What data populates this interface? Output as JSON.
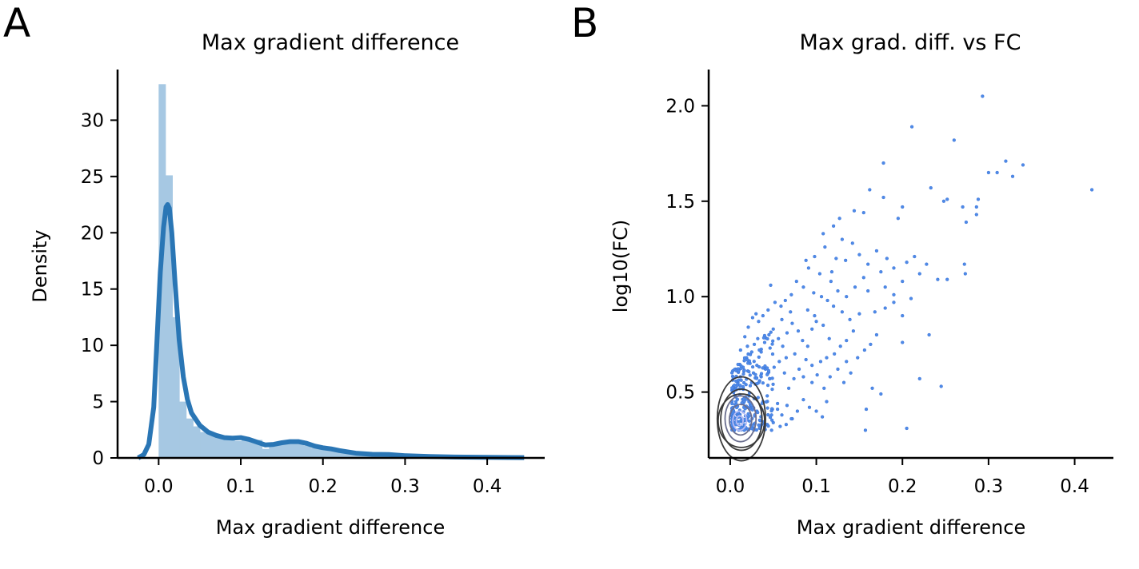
{
  "panels": {
    "a": {
      "letter": "A"
    },
    "b": {
      "letter": "B"
    }
  },
  "chart_data": [
    {
      "type": "bar",
      "title": "Max gradient difference",
      "xlabel": "Max gradient difference",
      "ylabel": "Density",
      "xlim": [
        -0.05,
        0.47
      ],
      "ylim": [
        0,
        34.5
      ],
      "xticks": [
        0.0,
        0.1,
        0.2,
        0.3,
        0.4
      ],
      "xtick_labels": [
        "0.0",
        "0.1",
        "0.2",
        "0.3",
        "0.4"
      ],
      "yticks": [
        0,
        5,
        10,
        15,
        20,
        25,
        30
      ],
      "ytick_labels": [
        "0",
        "5",
        "10",
        "15",
        "20",
        "25",
        "30"
      ],
      "bin_width": 0.0084,
      "histogram": [
        {
          "x": 0.0042,
          "y": 33.2
        },
        {
          "x": 0.0126,
          "y": 25.1
        },
        {
          "x": 0.021,
          "y": 12.5
        },
        {
          "x": 0.0294,
          "y": 5.0
        },
        {
          "x": 0.0378,
          "y": 3.5
        },
        {
          "x": 0.0462,
          "y": 2.8
        },
        {
          "x": 0.0546,
          "y": 2.3
        },
        {
          "x": 0.063,
          "y": 2.1
        },
        {
          "x": 0.0714,
          "y": 1.9
        },
        {
          "x": 0.0798,
          "y": 1.7
        },
        {
          "x": 0.0882,
          "y": 1.6
        },
        {
          "x": 0.0966,
          "y": 1.5
        },
        {
          "x": 0.105,
          "y": 1.7
        },
        {
          "x": 0.1134,
          "y": 1.5
        },
        {
          "x": 0.1218,
          "y": 1.6
        },
        {
          "x": 0.1302,
          "y": 0.8
        },
        {
          "x": 0.1386,
          "y": 1.2
        },
        {
          "x": 0.147,
          "y": 1.4
        },
        {
          "x": 0.1554,
          "y": 1.5
        },
        {
          "x": 0.1638,
          "y": 1.3
        },
        {
          "x": 0.1722,
          "y": 1.3
        },
        {
          "x": 0.1806,
          "y": 1.1
        },
        {
          "x": 0.189,
          "y": 0.9
        },
        {
          "x": 0.1974,
          "y": 0.8
        },
        {
          "x": 0.2058,
          "y": 0.7
        },
        {
          "x": 0.2142,
          "y": 0.6
        },
        {
          "x": 0.2226,
          "y": 0.5
        },
        {
          "x": 0.231,
          "y": 0.5
        },
        {
          "x": 0.2394,
          "y": 0.4
        },
        {
          "x": 0.2478,
          "y": 0.4
        },
        {
          "x": 0.2562,
          "y": 0.35
        },
        {
          "x": 0.2646,
          "y": 0.3
        },
        {
          "x": 0.273,
          "y": 0.3
        },
        {
          "x": 0.2814,
          "y": 0.25
        },
        {
          "x": 0.2898,
          "y": 0.2
        },
        {
          "x": 0.2982,
          "y": 0.2
        },
        {
          "x": 0.3066,
          "y": 0.15
        },
        {
          "x": 0.315,
          "y": 0.12
        },
        {
          "x": 0.3234,
          "y": 0.1
        },
        {
          "x": 0.3318,
          "y": 0.1
        },
        {
          "x": 0.3402,
          "y": 0.08
        },
        {
          "x": 0.42,
          "y": 0.1
        }
      ],
      "kde": [
        [
          -0.025,
          0.0
        ],
        [
          -0.018,
          0.3
        ],
        [
          -0.012,
          1.2
        ],
        [
          -0.006,
          4.5
        ],
        [
          -0.002,
          10.5
        ],
        [
          0.002,
          16.5
        ],
        [
          0.006,
          20.5
        ],
        [
          0.009,
          22.3
        ],
        [
          0.011,
          22.5
        ],
        [
          0.013,
          22.2
        ],
        [
          0.016,
          20.0
        ],
        [
          0.02,
          15.5
        ],
        [
          0.025,
          10.5
        ],
        [
          0.03,
          7.2
        ],
        [
          0.035,
          5.2
        ],
        [
          0.04,
          4.0
        ],
        [
          0.05,
          2.9
        ],
        [
          0.06,
          2.3
        ],
        [
          0.07,
          2.0
        ],
        [
          0.08,
          1.8
        ],
        [
          0.09,
          1.75
        ],
        [
          0.1,
          1.8
        ],
        [
          0.11,
          1.65
        ],
        [
          0.12,
          1.4
        ],
        [
          0.13,
          1.15
        ],
        [
          0.14,
          1.2
        ],
        [
          0.15,
          1.35
        ],
        [
          0.16,
          1.45
        ],
        [
          0.17,
          1.45
        ],
        [
          0.18,
          1.3
        ],
        [
          0.19,
          1.05
        ],
        [
          0.2,
          0.9
        ],
        [
          0.21,
          0.8
        ],
        [
          0.22,
          0.65
        ],
        [
          0.24,
          0.42
        ],
        [
          0.26,
          0.32
        ],
        [
          0.28,
          0.3
        ],
        [
          0.3,
          0.2
        ],
        [
          0.33,
          0.12
        ],
        [
          0.36,
          0.08
        ],
        [
          0.4,
          0.05
        ],
        [
          0.445,
          0.03
        ]
      ],
      "colors": {
        "hist": "#a6c8e3",
        "kde": "#2a76b5"
      }
    },
    {
      "type": "scatter",
      "title": "Max grad. diff. vs FC",
      "xlabel": "Max gradient difference",
      "ylabel": "log10(FC)",
      "xlim": [
        -0.025,
        0.445
      ],
      "ylim": [
        0.155,
        2.19
      ],
      "xticks": [
        0.0,
        0.1,
        0.2,
        0.3,
        0.4
      ],
      "xtick_labels": [
        "0.0",
        "0.1",
        "0.2",
        "0.3",
        "0.4"
      ],
      "yticks": [
        0.5,
        1.0,
        1.5,
        2.0
      ],
      "ytick_labels": [
        "0.5",
        "1.0",
        "1.5",
        "2.0"
      ],
      "points": [
        [
          0.293,
          2.05
        ],
        [
          0.211,
          1.89
        ],
        [
          0.26,
          1.82
        ],
        [
          0.178,
          1.7
        ],
        [
          0.32,
          1.71
        ],
        [
          0.3,
          1.65
        ],
        [
          0.31,
          1.65
        ],
        [
          0.34,
          1.69
        ],
        [
          0.328,
          1.63
        ],
        [
          0.42,
          1.56
        ],
        [
          0.233,
          1.57
        ],
        [
          0.252,
          1.51
        ],
        [
          0.248,
          1.5
        ],
        [
          0.27,
          1.47
        ],
        [
          0.288,
          1.51
        ],
        [
          0.286,
          1.47
        ],
        [
          0.274,
          1.39
        ],
        [
          0.286,
          1.43
        ],
        [
          0.2,
          1.47
        ],
        [
          0.195,
          1.41
        ],
        [
          0.178,
          1.52
        ],
        [
          0.162,
          1.56
        ],
        [
          0.155,
          1.44
        ],
        [
          0.144,
          1.45
        ],
        [
          0.127,
          1.41
        ],
        [
          0.12,
          1.37
        ],
        [
          0.13,
          1.3
        ],
        [
          0.108,
          1.33
        ],
        [
          0.11,
          1.26
        ],
        [
          0.098,
          1.21
        ],
        [
          0.088,
          1.19
        ],
        [
          0.091,
          1.15
        ],
        [
          0.104,
          1.12
        ],
        [
          0.117,
          1.08
        ],
        [
          0.123,
          1.2
        ],
        [
          0.134,
          1.19
        ],
        [
          0.142,
          1.28
        ],
        [
          0.15,
          1.22
        ],
        [
          0.16,
          1.17
        ],
        [
          0.17,
          1.24
        ],
        [
          0.175,
          1.13
        ],
        [
          0.182,
          1.2
        ],
        [
          0.19,
          1.15
        ],
        [
          0.205,
          1.18
        ],
        [
          0.214,
          1.21
        ],
        [
          0.22,
          1.12
        ],
        [
          0.228,
          1.17
        ],
        [
          0.241,
          1.09
        ],
        [
          0.252,
          1.09
        ],
        [
          0.273,
          1.12
        ],
        [
          0.272,
          1.17
        ],
        [
          0.231,
          0.8
        ],
        [
          0.2,
          0.9
        ],
        [
          0.19,
          0.97
        ],
        [
          0.18,
          0.94
        ],
        [
          0.168,
          0.92
        ],
        [
          0.15,
          0.91
        ],
        [
          0.139,
          0.88
        ],
        [
          0.13,
          0.92
        ],
        [
          0.12,
          0.95
        ],
        [
          0.113,
          0.98
        ],
        [
          0.106,
          1.0
        ],
        [
          0.097,
          1.02
        ],
        [
          0.085,
          1.05
        ],
        [
          0.077,
          1.08
        ],
        [
          0.071,
          1.01
        ],
        [
          0.064,
          0.98
        ],
        [
          0.059,
          0.95
        ],
        [
          0.052,
          0.97
        ],
        [
          0.047,
          1.06
        ],
        [
          0.044,
          0.93
        ],
        [
          0.038,
          0.9
        ],
        [
          0.033,
          0.87
        ],
        [
          0.03,
          0.91
        ],
        [
          0.026,
          0.89
        ],
        [
          0.021,
          0.84
        ],
        [
          0.017,
          0.79
        ],
        [
          0.02,
          0.74
        ],
        [
          0.025,
          0.71
        ],
        [
          0.028,
          0.75
        ],
        [
          0.032,
          0.78
        ],
        [
          0.036,
          0.71
        ],
        [
          0.04,
          0.76
        ],
        [
          0.045,
          0.8
        ],
        [
          0.05,
          0.83
        ],
        [
          0.056,
          0.78
        ],
        [
          0.061,
          0.74
        ],
        [
          0.066,
          0.81
        ],
        [
          0.072,
          0.86
        ],
        [
          0.079,
          0.82
        ],
        [
          0.084,
          0.77
        ],
        [
          0.09,
          0.74
        ],
        [
          0.095,
          0.83
        ],
        [
          0.1,
          0.87
        ],
        [
          0.108,
          0.85
        ],
        [
          0.115,
          0.78
        ],
        [
          0.121,
          0.7
        ],
        [
          0.128,
          0.74
        ],
        [
          0.135,
          0.77
        ],
        [
          0.143,
          0.82
        ],
        [
          0.148,
          0.68
        ],
        [
          0.156,
          0.72
        ],
        [
          0.163,
          0.75
        ],
        [
          0.17,
          0.8
        ],
        [
          0.2,
          0.76
        ],
        [
          0.14,
          0.6
        ],
        [
          0.132,
          0.55
        ],
        [
          0.125,
          0.62
        ],
        [
          0.116,
          0.58
        ],
        [
          0.109,
          0.52
        ],
        [
          0.101,
          0.59
        ],
        [
          0.095,
          0.64
        ],
        [
          0.088,
          0.67
        ],
        [
          0.08,
          0.62
        ],
        [
          0.074,
          0.57
        ],
        [
          0.068,
          0.52
        ],
        [
          0.063,
          0.6
        ],
        [
          0.057,
          0.66
        ],
        [
          0.051,
          0.63
        ],
        [
          0.046,
          0.57
        ],
        [
          0.041,
          0.62
        ],
        [
          0.036,
          0.58
        ],
        [
          0.031,
          0.64
        ],
        [
          0.027,
          0.6
        ],
        [
          0.023,
          0.65
        ],
        [
          0.019,
          0.68
        ],
        [
          0.015,
          0.63
        ],
        [
          0.012,
          0.58
        ],
        [
          0.009,
          0.55
        ],
        [
          0.006,
          0.62
        ],
        [
          0.003,
          0.52
        ],
        [
          0.038,
          0.45
        ],
        [
          0.043,
          0.48
        ],
        [
          0.049,
          0.41
        ],
        [
          0.055,
          0.44
        ],
        [
          0.06,
          0.38
        ],
        [
          0.066,
          0.43
        ],
        [
          0.072,
          0.36
        ],
        [
          0.078,
          0.4
        ],
        [
          0.085,
          0.46
        ],
        [
          0.092,
          0.42
        ],
        [
          0.1,
          0.4
        ],
        [
          0.107,
          0.37
        ],
        [
          0.112,
          0.45
        ],
        [
          0.165,
          0.52
        ],
        [
          0.175,
          0.49
        ],
        [
          0.158,
          0.41
        ],
        [
          0.157,
          0.3
        ],
        [
          0.205,
          0.31
        ],
        [
          0.22,
          0.57
        ],
        [
          0.245,
          0.53
        ],
        [
          0.043,
          0.33
        ],
        [
          0.05,
          0.34
        ],
        [
          0.058,
          0.32
        ],
        [
          0.065,
          0.33
        ],
        [
          0.071,
          0.36
        ],
        [
          0.048,
          0.38
        ],
        [
          0.055,
          0.41
        ],
        [
          0.031,
          0.4
        ],
        [
          0.035,
          0.35
        ],
        [
          0.18,
          1.05
        ],
        [
          0.19,
          1.01
        ],
        [
          0.2,
          1.08
        ],
        [
          0.21,
          0.99
        ],
        [
          0.16,
          1.03
        ],
        [
          0.155,
          1.1
        ],
        [
          0.145,
          1.05
        ],
        [
          0.135,
          1.0
        ],
        [
          0.125,
          1.03
        ],
        [
          0.118,
          1.13
        ],
        [
          0.098,
          0.9
        ],
        [
          0.09,
          0.93
        ],
        [
          0.07,
          0.92
        ],
        [
          0.06,
          0.88
        ],
        [
          0.065,
          0.68
        ],
        [
          0.075,
          0.7
        ],
        [
          0.085,
          0.58
        ],
        [
          0.095,
          0.55
        ],
        [
          0.105,
          0.66
        ],
        [
          0.112,
          0.68
        ],
        [
          0.135,
          0.66
        ],
        [
          0.012,
          0.72
        ],
        [
          0.015,
          0.52
        ],
        [
          0.022,
          0.48
        ],
        [
          0.025,
          0.55
        ]
      ],
      "kde_levels": [
        {
          "cx": 0.013,
          "cy": 0.35,
          "rx": 0.027,
          "ry": 0.14
        },
        {
          "cx": 0.013,
          "cy": 0.355,
          "rx": 0.024,
          "ry": 0.16
        },
        {
          "cx": 0.013,
          "cy": 0.36,
          "rx": 0.028,
          "ry": 0.22
        },
        {
          "cx": 0.012,
          "cy": 0.36,
          "rx": 0.018,
          "ry": 0.12
        },
        {
          "cx": 0.012,
          "cy": 0.355,
          "rx": 0.013,
          "ry": 0.08
        },
        {
          "cx": 0.011,
          "cy": 0.35,
          "rx": 0.008,
          "ry": 0.05
        },
        {
          "cx": 0.011,
          "cy": 0.35,
          "rx": 0.004,
          "ry": 0.025
        }
      ],
      "colors": {
        "points": "#4f8be8",
        "kde_dark": "#3a3a3a",
        "kde_light": "#b8bdf5"
      }
    }
  ]
}
